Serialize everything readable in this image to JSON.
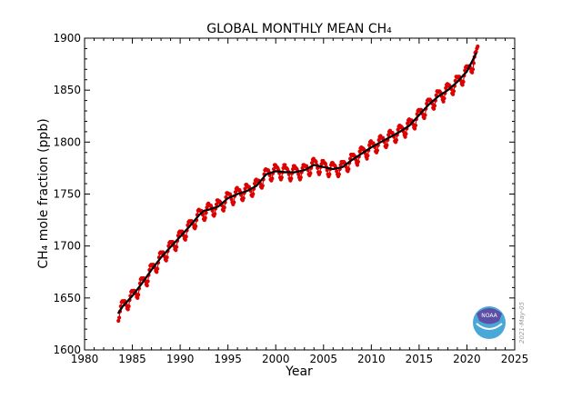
{
  "chart_data": {
    "type": "line",
    "title": "GLOBAL MONTHLY MEAN CH₄",
    "xlabel": "Year",
    "ylabel": "CH₄ mole fraction (ppb)",
    "xlim": [
      1980,
      2025
    ],
    "ylim": [
      1600,
      1900
    ],
    "xticks": [
      1980,
      1985,
      1990,
      1995,
      2000,
      2005,
      2010,
      2015,
      2020,
      2025
    ],
    "yticks": [
      1600,
      1650,
      1700,
      1750,
      1800,
      1850,
      1900
    ],
    "grid": false,
    "legend": "none",
    "date_stamp": "2021-May-05",
    "logo_text": "NOAA",
    "colors": {
      "monthly": "#dd0000",
      "trend": "#000000",
      "logo_top": "#5b4fa6",
      "logo_bottom": "#4aa8d8"
    },
    "series": [
      {
        "kind": "monthly-points",
        "start": "1983-07",
        "by_year": {
          "1983": [
            1628,
            1631,
            1637,
            1642,
            1646,
            1647
          ],
          "1984": [
            1646,
            1647,
            1647,
            1645,
            1643,
            1640,
            1639,
            1642,
            1648,
            1652,
            1656,
            1657
          ],
          "1985": [
            1656,
            1657,
            1657,
            1656,
            1654,
            1651,
            1650,
            1653,
            1659,
            1664,
            1668,
            1669
          ],
          "1986": [
            1668,
            1669,
            1669,
            1668,
            1666,
            1663,
            1662,
            1666,
            1672,
            1677,
            1681,
            1682
          ],
          "1987": [
            1681,
            1682,
            1682,
            1681,
            1679,
            1676,
            1675,
            1678,
            1684,
            1689,
            1693,
            1694
          ],
          "1988": [
            1693,
            1694,
            1694,
            1693,
            1690,
            1687,
            1686,
            1689,
            1695,
            1700,
            1703,
            1704
          ],
          "1989": [
            1703,
            1704,
            1704,
            1703,
            1700,
            1697,
            1696,
            1699,
            1705,
            1710,
            1713,
            1714
          ],
          "1990": [
            1713,
            1714,
            1714,
            1713,
            1710,
            1707,
            1706,
            1709,
            1715,
            1720,
            1723,
            1724
          ],
          "1991": [
            1723,
            1724,
            1724,
            1723,
            1721,
            1718,
            1717,
            1719,
            1725,
            1730,
            1734,
            1735
          ],
          "1992": [
            1734,
            1734,
            1734,
            1732,
            1730,
            1726,
            1725,
            1727,
            1732,
            1737,
            1740,
            1741
          ],
          "1993": [
            1739,
            1739,
            1739,
            1737,
            1734,
            1730,
            1729,
            1731,
            1736,
            1740,
            1744,
            1744
          ],
          "1994": [
            1742,
            1743,
            1742,
            1741,
            1739,
            1735,
            1734,
            1737,
            1742,
            1747,
            1751,
            1751
          ],
          "1995": [
            1750,
            1750,
            1750,
            1748,
            1745,
            1742,
            1740,
            1742,
            1748,
            1752,
            1755,
            1756
          ],
          "1996": [
            1754,
            1754,
            1754,
            1752,
            1749,
            1745,
            1744,
            1746,
            1751,
            1755,
            1759,
            1759
          ],
          "1997": [
            1757,
            1757,
            1757,
            1755,
            1753,
            1749,
            1748,
            1750,
            1755,
            1760,
            1763,
            1764
          ],
          "1998": [
            1762,
            1763,
            1763,
            1762,
            1760,
            1757,
            1756,
            1758,
            1764,
            1769,
            1773,
            1774
          ],
          "1999": [
            1773,
            1773,
            1773,
            1771,
            1768,
            1764,
            1763,
            1765,
            1770,
            1774,
            1778,
            1778
          ],
          "2000": [
            1776,
            1776,
            1775,
            1773,
            1770,
            1766,
            1764,
            1766,
            1771,
            1775,
            1778,
            1778
          ],
          "2001": [
            1775,
            1775,
            1774,
            1772,
            1769,
            1765,
            1763,
            1765,
            1770,
            1774,
            1777,
            1777
          ],
          "2002": [
            1775,
            1775,
            1774,
            1772,
            1769,
            1766,
            1764,
            1766,
            1771,
            1775,
            1778,
            1778
          ],
          "2003": [
            1777,
            1777,
            1777,
            1775,
            1773,
            1769,
            1768,
            1770,
            1775,
            1780,
            1783,
            1784
          ],
          "2004": [
            1782,
            1782,
            1781,
            1778,
            1775,
            1771,
            1769,
            1771,
            1776,
            1779,
            1782,
            1782
          ],
          "2005": [
            1780,
            1780,
            1779,
            1776,
            1773,
            1769,
            1767,
            1769,
            1774,
            1778,
            1780,
            1780
          ],
          "2006": [
            1778,
            1778,
            1777,
            1775,
            1772,
            1769,
            1767,
            1769,
            1774,
            1778,
            1781,
            1781
          ],
          "2007": [
            1780,
            1781,
            1780,
            1779,
            1776,
            1773,
            1772,
            1774,
            1780,
            1784,
            1788,
            1788
          ],
          "2008": [
            1787,
            1788,
            1787,
            1786,
            1783,
            1780,
            1778,
            1781,
            1786,
            1791,
            1794,
            1795
          ],
          "2009": [
            1793,
            1794,
            1793,
            1792,
            1789,
            1786,
            1784,
            1787,
            1792,
            1797,
            1800,
            1801
          ],
          "2010": [
            1799,
            1799,
            1799,
            1797,
            1795,
            1791,
            1790,
            1792,
            1797,
            1802,
            1805,
            1806
          ],
          "2011": [
            1804,
            1804,
            1804,
            1802,
            1800,
            1796,
            1795,
            1797,
            1802,
            1807,
            1810,
            1811
          ],
          "2012": [
            1809,
            1809,
            1809,
            1807,
            1805,
            1801,
            1800,
            1802,
            1807,
            1812,
            1815,
            1816
          ],
          "2013": [
            1814,
            1815,
            1814,
            1813,
            1810,
            1807,
            1805,
            1808,
            1813,
            1818,
            1821,
            1822
          ],
          "2014": [
            1820,
            1821,
            1821,
            1820,
            1817,
            1814,
            1813,
            1816,
            1822,
            1827,
            1830,
            1831
          ],
          "2015": [
            1830,
            1831,
            1831,
            1830,
            1827,
            1824,
            1823,
            1826,
            1832,
            1837,
            1840,
            1841
          ],
          "2016": [
            1840,
            1841,
            1840,
            1839,
            1837,
            1833,
            1832,
            1835,
            1840,
            1845,
            1849,
            1849
          ],
          "2017": [
            1848,
            1849,
            1848,
            1847,
            1844,
            1841,
            1839,
            1842,
            1847,
            1852,
            1855,
            1856
          ],
          "2018": [
            1854,
            1855,
            1854,
            1853,
            1851,
            1847,
            1846,
            1849,
            1854,
            1859,
            1863,
            1863
          ],
          "2019": [
            1862,
            1863,
            1863,
            1862,
            1859,
            1856,
            1855,
            1858,
            1864,
            1869,
            1872,
            1873
          ],
          "2020": [
            1872,
            1873,
            1873,
            1873,
            1871,
            1868,
            1867,
            1870,
            1876,
            1882,
            1886,
            1887
          ],
          "2021": [
            1890,
            1892
          ]
        }
      },
      {
        "kind": "trend-line",
        "points": [
          [
            1983.5,
            1635
          ],
          [
            1984,
            1642
          ],
          [
            1985,
            1652
          ],
          [
            1986,
            1664
          ],
          [
            1987,
            1677
          ],
          [
            1988,
            1689
          ],
          [
            1989,
            1699
          ],
          [
            1990,
            1709
          ],
          [
            1991,
            1719
          ],
          [
            1992,
            1730
          ],
          [
            1992.5,
            1734
          ],
          [
            1993,
            1735
          ],
          [
            1994,
            1738
          ],
          [
            1995,
            1746
          ],
          [
            1996,
            1750
          ],
          [
            1997,
            1753
          ],
          [
            1998,
            1758
          ],
          [
            1999,
            1769
          ],
          [
            2000,
            1772
          ],
          [
            2001,
            1771
          ],
          [
            2002,
            1771
          ],
          [
            2003,
            1773
          ],
          [
            2004,
            1778
          ],
          [
            2005,
            1776
          ],
          [
            2006,
            1774
          ],
          [
            2007,
            1776
          ],
          [
            2008,
            1783
          ],
          [
            2009,
            1789
          ],
          [
            2010,
            1795
          ],
          [
            2011,
            1800
          ],
          [
            2012,
            1805
          ],
          [
            2013,
            1810
          ],
          [
            2014,
            1816
          ],
          [
            2015,
            1826
          ],
          [
            2016,
            1836
          ],
          [
            2017,
            1844
          ],
          [
            2018,
            1850
          ],
          [
            2019,
            1858
          ],
          [
            2020,
            1868
          ],
          [
            2021,
            1886
          ]
        ]
      }
    ]
  }
}
